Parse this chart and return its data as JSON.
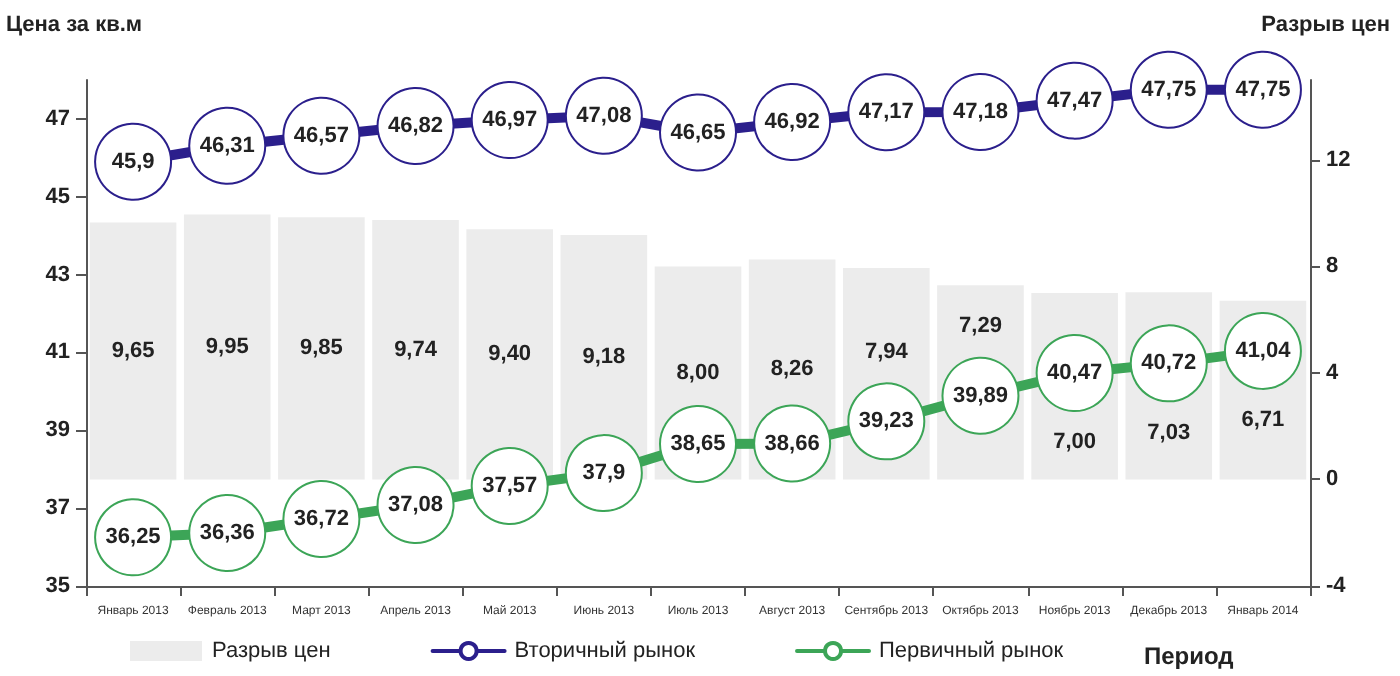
{
  "chart_data": {
    "type": "bar",
    "ylabel": "Цена за кв.м",
    "y2label": "Разрыв цен",
    "xlabel": "Период",
    "categories": [
      "Январь 2013",
      "Февраль 2013",
      "Март 2013",
      "Апрель 2013",
      "Май 2013",
      "Июнь 2013",
      "Июль 2013",
      "Август 2013",
      "Сентябрь 2013",
      "Октябрь 2013",
      "Ноябрь 2013",
      "Декабрь 2013",
      "Январь 2014"
    ],
    "series": [
      {
        "name": "Разрыв цен",
        "axis": "y2",
        "color": "#ececec",
        "values": [
          9.65,
          9.95,
          9.85,
          9.74,
          9.4,
          9.18,
          8.0,
          8.26,
          7.94,
          7.29,
          7.0,
          7.03,
          6.71
        ],
        "value_labels": [
          "9,65",
          "9,95",
          "9,85",
          "9,74",
          "9,40",
          "9,18",
          "8,00",
          "8,26",
          "7,94",
          "7,29",
          "7,00",
          "7,03",
          "6,71"
        ]
      },
      {
        "name": "Вторичный рынок",
        "type": "line",
        "color": "#2b1f8c",
        "values": [
          45.9,
          46.31,
          46.57,
          46.82,
          46.97,
          47.08,
          46.65,
          46.92,
          47.17,
          47.18,
          47.47,
          47.75,
          47.75
        ],
        "value_labels": [
          "45,9",
          "46,31",
          "46,57",
          "46,82",
          "46,97",
          "47,08",
          "46,65",
          "46,92",
          "47,17",
          "47,18",
          "47,47",
          "47,75",
          "47,75"
        ]
      },
      {
        "name": "Первичный рынок",
        "type": "line",
        "color": "#3ca557",
        "values": [
          36.25,
          36.36,
          36.72,
          37.08,
          37.57,
          37.9,
          38.65,
          38.66,
          39.23,
          39.89,
          40.47,
          40.72,
          41.04
        ],
        "value_labels": [
          "36,25",
          "36,36",
          "36,72",
          "37,08",
          "37,57",
          "37,9",
          "38,65",
          "38,66",
          "39,23",
          "39,89",
          "40,47",
          "40,72",
          "41,04"
        ]
      }
    ],
    "ylim": [
      35,
      48
    ],
    "yticks": [
      35,
      37,
      39,
      41,
      43,
      45,
      47
    ],
    "y2lim": [
      -4,
      15
    ],
    "y2ticks": [
      -4,
      0,
      4,
      8,
      12
    ],
    "marker": "circle",
    "line_style": "solid",
    "grid": false,
    "legend": "bottom"
  }
}
